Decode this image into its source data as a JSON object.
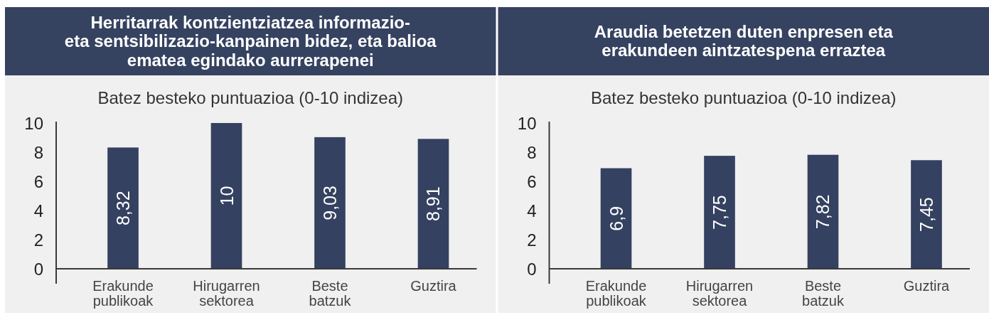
{
  "chart_data": [
    {
      "type": "bar",
      "title": "Herritarrak kontzientziatzea informazio-\neta sentsibilizazio-kanpainen bidez, eta balioa\nematea egindako aurrerapenei",
      "subtitle": "Batez besteko puntuazioa (0-10 indizea)",
      "categories": [
        "Erakunde publikoak",
        "Hirugarren sektorea",
        "Beste batzuk",
        "Guztira"
      ],
      "values": [
        8.32,
        10,
        9.03,
        8.91
      ],
      "value_labels": [
        "8,32",
        "10",
        "9,03",
        "8,91"
      ],
      "color": "#344160",
      "ylim": [
        0,
        10
      ],
      "yticks": [
        0,
        2,
        4,
        6,
        8,
        10
      ]
    },
    {
      "type": "bar",
      "title": "Araudia betetzen duten enpresen eta\nerakundeen aintzatespena erraztea",
      "subtitle": "Batez besteko puntuazioa (0-10 indizea)",
      "categories": [
        "Erakunde publikoak",
        "Hirugarren sektorea",
        "Beste batzuk",
        "Guztira"
      ],
      "values": [
        6.9,
        7.75,
        7.82,
        7.45
      ],
      "value_labels": [
        "6,9",
        "7,75",
        "7,82",
        "7,45"
      ],
      "color": "#344160",
      "ylim": [
        0,
        10
      ],
      "yticks": [
        0,
        2,
        4,
        6,
        8,
        10
      ]
    }
  ]
}
